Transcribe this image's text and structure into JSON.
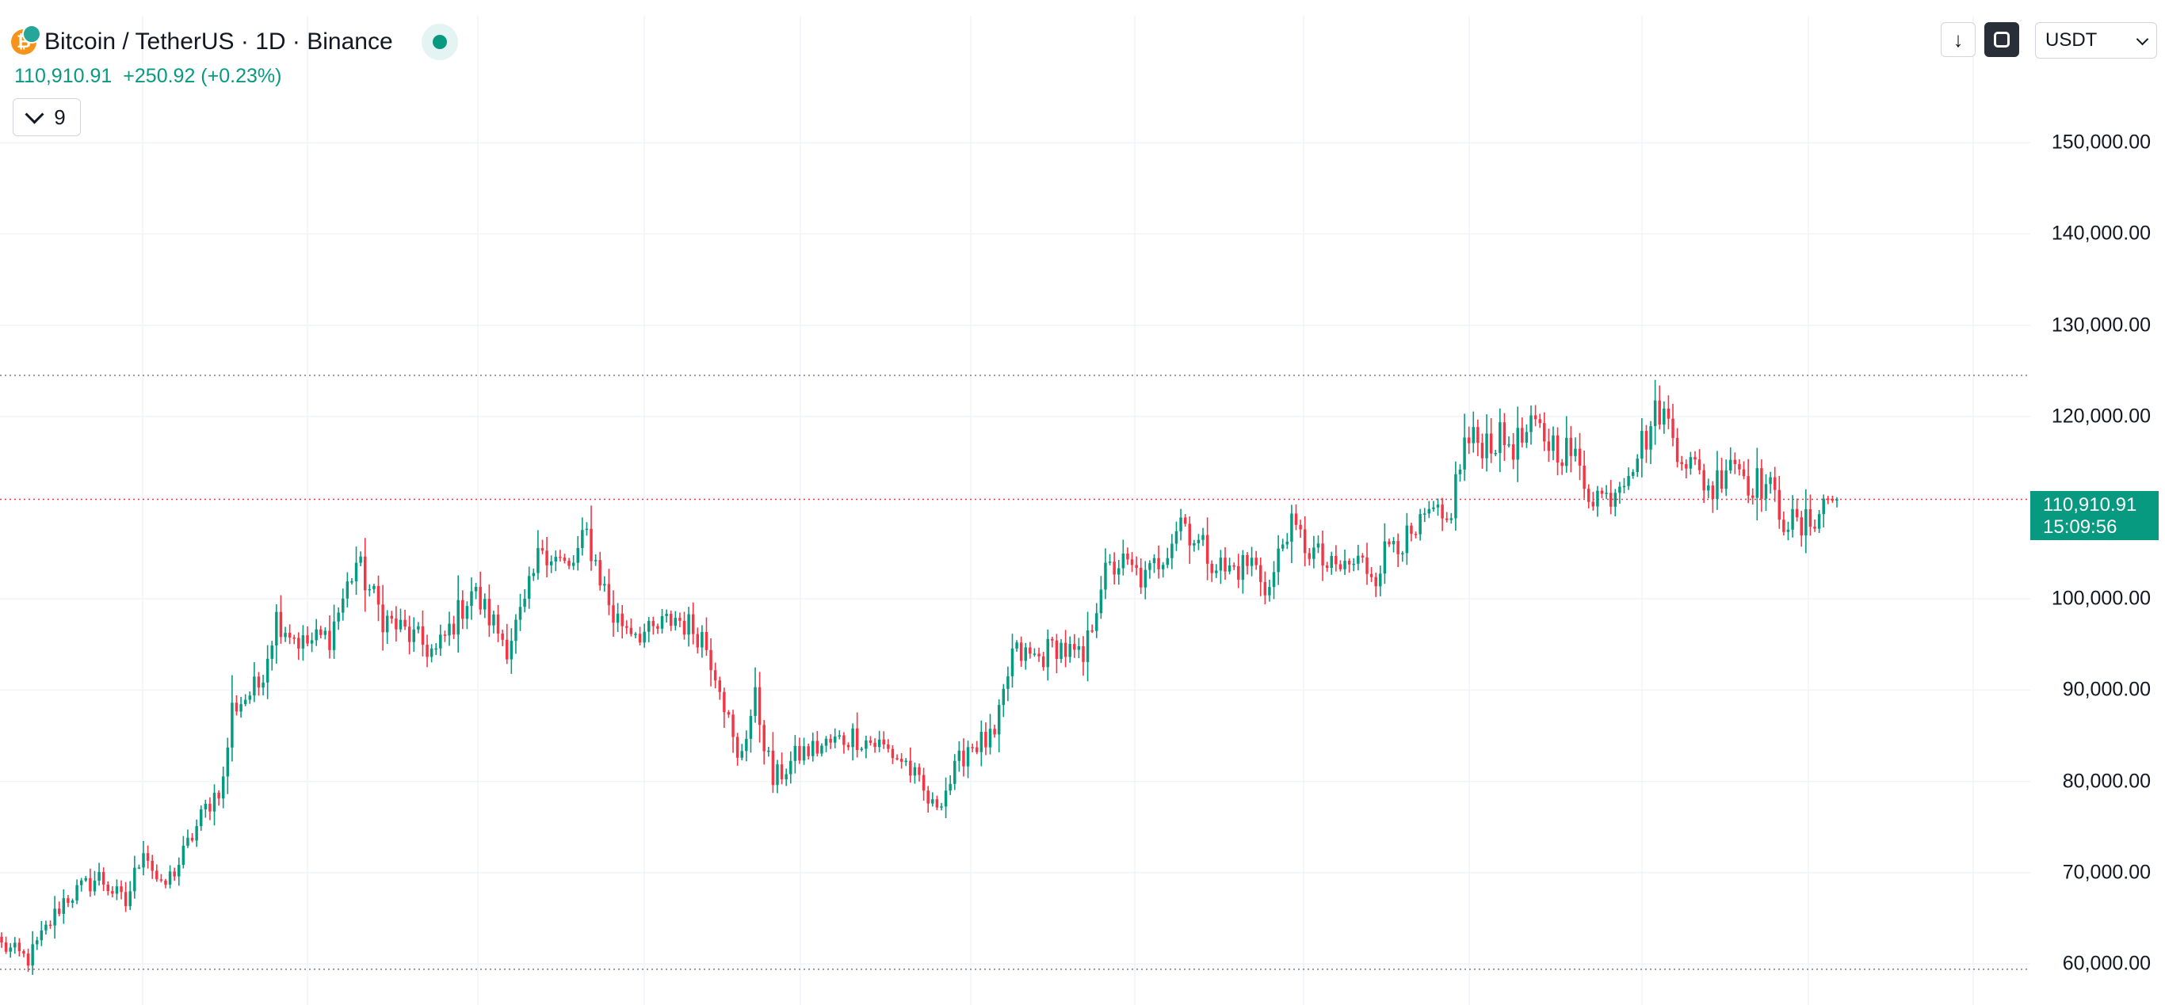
{
  "header": {
    "title": "Bitcoin / TetherUS · 1D · Binance",
    "coin_glyph": "₿",
    "price": "110,910.91",
    "change": "+250.92 (+0.23%)",
    "indicator_count": "9",
    "up_color": "#089981",
    "down_color": "#f23645"
  },
  "toolbar": {
    "down_arrow": "↓",
    "currency": "USDT"
  },
  "last_price": {
    "value": "110,910.91",
    "countdown": "15:09:56"
  },
  "chart_data": {
    "type": "candlestick",
    "y_ticks": [
      "150,000.00",
      "140,000.00",
      "130,000.00",
      "120,000.00",
      "100,000.00",
      "90,000.00",
      "80,000.00",
      "70,000.00",
      "60,000.00"
    ],
    "ylim": [
      58000,
      160000
    ],
    "reference_lines": {
      "high": 124500,
      "low": 59400,
      "last": 110910.91
    },
    "anchors": [
      [
        0,
        62000
      ],
      [
        6,
        60500
      ],
      [
        14,
        67000
      ],
      [
        22,
        69500
      ],
      [
        28,
        66500
      ],
      [
        32,
        73000
      ],
      [
        36,
        68000
      ],
      [
        40,
        71000
      ],
      [
        46,
        77000
      ],
      [
        50,
        80000
      ],
      [
        52,
        88000
      ],
      [
        58,
        90500
      ],
      [
        62,
        98000
      ],
      [
        68,
        95000
      ],
      [
        74,
        96000
      ],
      [
        80,
        104000
      ],
      [
        86,
        98000
      ],
      [
        92,
        96000
      ],
      [
        98,
        94000
      ],
      [
        106,
        101000
      ],
      [
        114,
        95000
      ],
      [
        118,
        99000
      ],
      [
        122,
        106000
      ],
      [
        128,
        103000
      ],
      [
        132,
        107000
      ],
      [
        138,
        98000
      ],
      [
        146,
        96000
      ],
      [
        152,
        98000
      ],
      [
        158,
        96000
      ],
      [
        162,
        91000
      ],
      [
        166,
        82000
      ],
      [
        170,
        89000
      ],
      [
        174,
        80000
      ],
      [
        180,
        83000
      ],
      [
        186,
        84000
      ],
      [
        192,
        85000
      ],
      [
        198,
        84000
      ],
      [
        204,
        82000
      ],
      [
        210,
        77000
      ],
      [
        214,
        80000
      ],
      [
        218,
        84000
      ],
      [
        224,
        84500
      ],
      [
        228,
        94000
      ],
      [
        234,
        93500
      ],
      [
        238,
        95000
      ],
      [
        244,
        93000
      ],
      [
        248,
        102000
      ],
      [
        252,
        104000
      ],
      [
        258,
        102000
      ],
      [
        262,
        105000
      ],
      [
        266,
        109000
      ],
      [
        270,
        106000
      ],
      [
        276,
        103000
      ],
      [
        282,
        104000
      ],
      [
        286,
        101000
      ],
      [
        290,
        108000
      ],
      [
        294,
        106000
      ],
      [
        300,
        103000
      ],
      [
        306,
        104000
      ],
      [
        310,
        103000
      ],
      [
        314,
        107000
      ],
      [
        318,
        106000
      ],
      [
        322,
        109000
      ],
      [
        326,
        108000
      ],
      [
        330,
        117000
      ],
      [
        336,
        117500
      ],
      [
        342,
        117000
      ],
      [
        346,
        118500
      ],
      [
        350,
        117000
      ],
      [
        354,
        116000
      ],
      [
        358,
        112000
      ],
      [
        362,
        111000
      ],
      [
        366,
        114000
      ],
      [
        370,
        117000
      ],
      [
        374,
        121000
      ],
      [
        378,
        117000
      ],
      [
        382,
        114000
      ],
      [
        386,
        112000
      ],
      [
        390,
        116000
      ],
      [
        394,
        113000
      ],
      [
        398,
        112500
      ],
      [
        402,
        109000
      ],
      [
        406,
        107500
      ],
      [
        412,
        111000
      ],
      [
        414,
        110910
      ]
    ]
  }
}
